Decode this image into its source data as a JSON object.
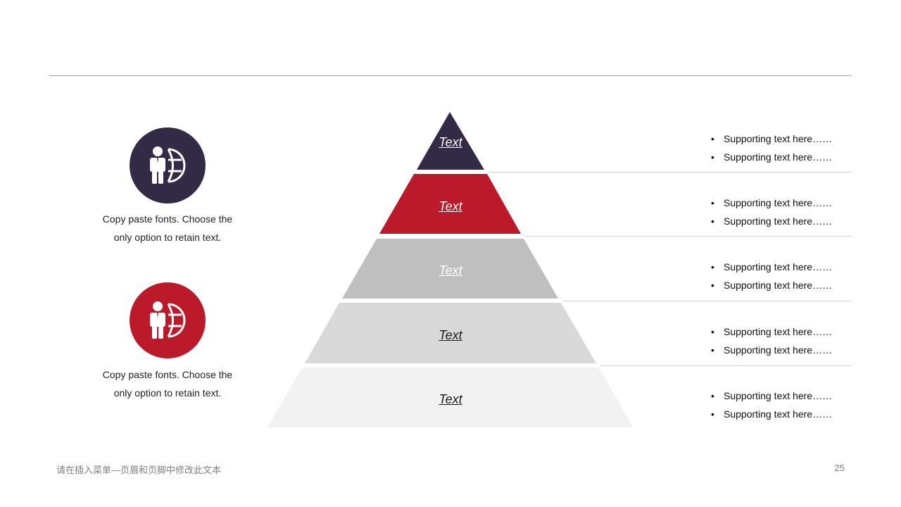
{
  "colors": {
    "tier_1": "#332a45",
    "tier_2": "#bb1a2b",
    "tier_3": "#bfbfbf",
    "tier_4": "#d9d9d9",
    "tier_5": "#f2f2f2",
    "icon_circle_1": "#332a45",
    "icon_circle_2": "#bb1a2b"
  },
  "pyramid": {
    "tiers": [
      {
        "label": "Text",
        "bullets": [
          "Supporting text here……",
          "Supporting text here……"
        ]
      },
      {
        "label": "Text",
        "bullets": [
          "Supporting text here……",
          "Supporting text here……"
        ]
      },
      {
        "label": "Text",
        "bullets": [
          "Supporting text here……",
          "Supporting text here……"
        ]
      },
      {
        "label": "Text",
        "bullets": [
          "Supporting text here……",
          "Supporting text here……"
        ]
      },
      {
        "label": "Text",
        "bullets": [
          "Supporting text here……",
          "Supporting text here……"
        ]
      }
    ]
  },
  "features": [
    {
      "icon": "businessman-globe-icon",
      "caption_line1": "Copy paste fonts. Choose the",
      "caption_line2": "only option to retain text."
    },
    {
      "icon": "businessman-globe-icon",
      "caption_line1": "Copy paste fonts. Choose the",
      "caption_line2": "only option to retain text."
    }
  ],
  "footer": {
    "text": "请在插入菜单—页眉和页脚中修改此文本",
    "page_number": "25"
  }
}
